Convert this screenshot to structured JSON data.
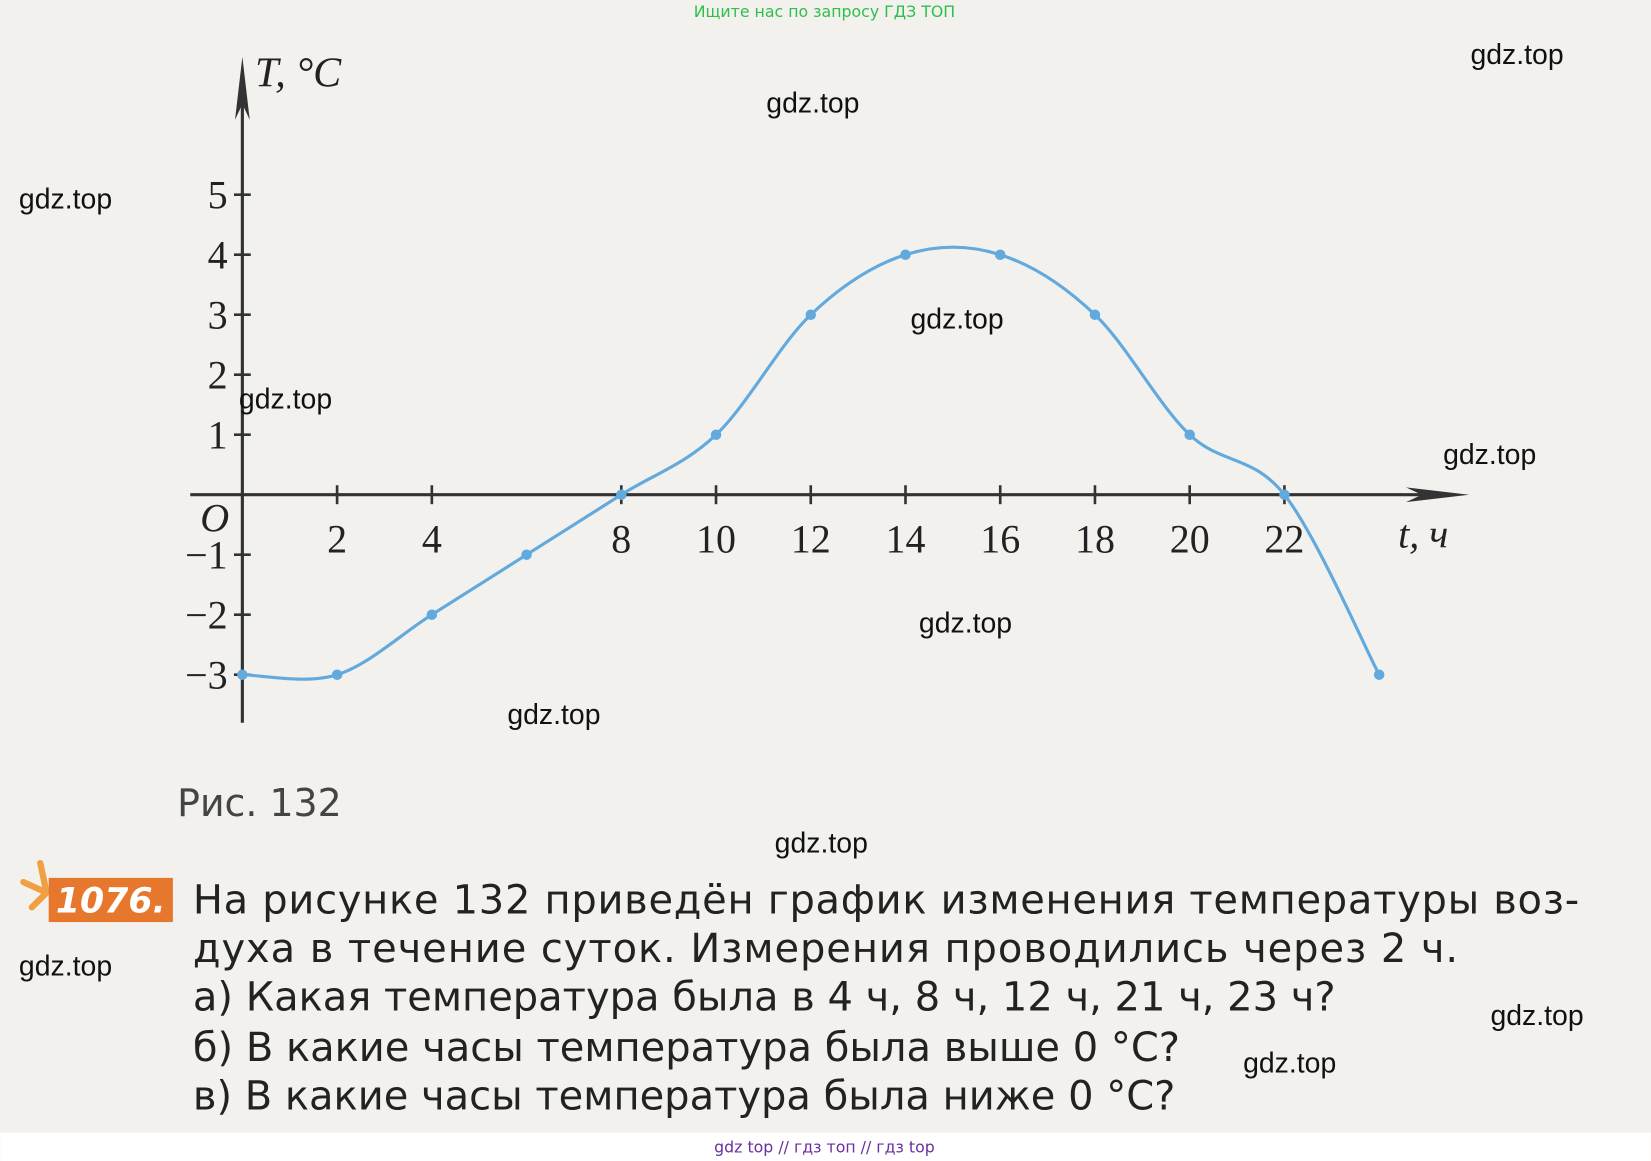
{
  "watermark_top": "Ищите нас по запросу ГДЗ ТОП",
  "watermarks": [
    "gdz.top",
    "gdz.top",
    "gdz.top",
    "gdz.top",
    "gdz.top",
    "gdz.top",
    "gdz.top",
    "gdz.top",
    "gdz.top",
    "gdz.top",
    "gdz.top",
    "gdz.top"
  ],
  "chart_data": {
    "type": "line",
    "y_label": "T, °C",
    "x_label": "t, ч",
    "origin_label": "O",
    "x": [
      0,
      2,
      4,
      6,
      8,
      10,
      12,
      14,
      16,
      18,
      20,
      22,
      24
    ],
    "series": [
      {
        "name": "T",
        "color": "#62a9dd",
        "values": [
          -3,
          -3,
          -2,
          -1,
          0,
          1,
          3,
          4,
          4,
          3,
          1,
          0,
          -3
        ]
      }
    ],
    "xlim": [
      -1.1,
      25.9
    ],
    "ylim": [
      -3.8,
      7.3
    ],
    "xticks": [
      2,
      4,
      8,
      10,
      12,
      14,
      16,
      18,
      20,
      22
    ],
    "yticks": [
      {
        "value": -3,
        "label": "−3"
      },
      {
        "value": -2,
        "label": "−2"
      },
      {
        "value": -1,
        "label": "−1"
      },
      1,
      2,
      3,
      4,
      5
    ],
    "smooth": true,
    "markers": true
  },
  "figure_caption": "Рис. 132",
  "problem": {
    "number": "1076.",
    "lines": [
      "На рисунке 132 приведён график изменения температуры воз-",
      "духа в течение суток. Измерения проводились через 2 ч.",
      "а) Какая температура была в 4 ч, 8 ч, 12 ч, 21 ч, 23 ч?",
      "б) В какие часы температура была выше 0 °C?",
      "в) В какие часы температура была ниже 0 °C?"
    ]
  },
  "footer": "gdz top // гдз топ // гдз top"
}
